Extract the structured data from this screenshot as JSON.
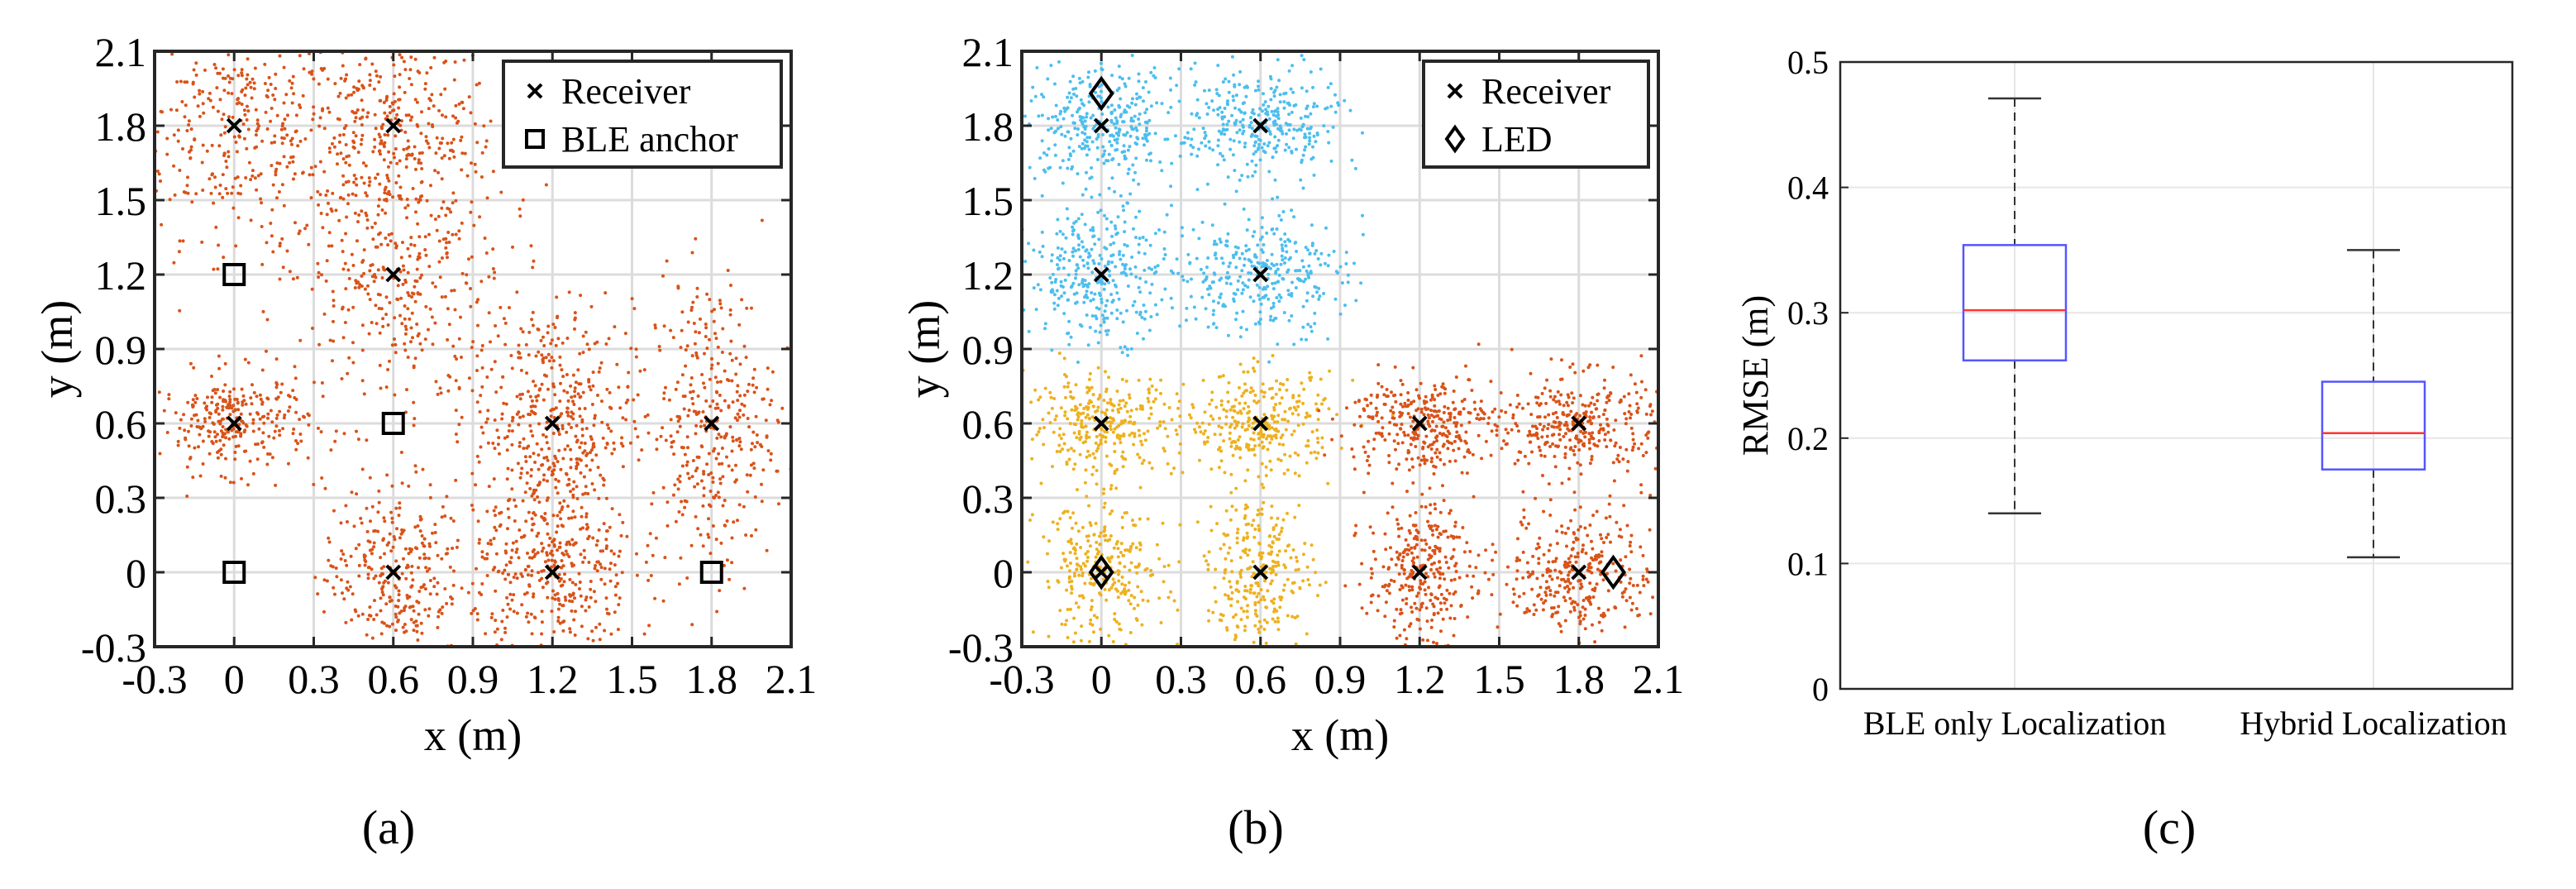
{
  "chart_data": [
    {
      "type": "scatter",
      "panel_label": "(a)",
      "xlabel": "x (m)",
      "ylabel": "y (m)",
      "xlim": [
        -0.3,
        2.1
      ],
      "ylim": [
        -0.3,
        2.1
      ],
      "ticks": [
        -0.3,
        0,
        0.3,
        0.6,
        0.9,
        1.2,
        1.5,
        1.8,
        2.1
      ],
      "tick_labels": [
        "-0.3",
        "0",
        "0.3",
        "0.6",
        "0.9",
        "1.2",
        "1.5",
        "1.8",
        "2.1"
      ],
      "grid": true,
      "legend_position": "top-right",
      "legend": [
        {
          "label": "Receiver",
          "marker": "x"
        },
        {
          "label": "BLE anchor",
          "marker": "square"
        }
      ],
      "receivers": [
        [
          0,
          1.8
        ],
        [
          0.6,
          1.8
        ],
        [
          0.6,
          1.2
        ],
        [
          0,
          0.6
        ],
        [
          1.2,
          0.6
        ],
        [
          1.8,
          0.6
        ],
        [
          0.6,
          0
        ],
        [
          1.2,
          0
        ]
      ],
      "anchors": [
        [
          0,
          1.2
        ],
        [
          0.6,
          0.6
        ],
        [
          0,
          0
        ],
        [
          1.8,
          0
        ]
      ],
      "estimate_clouds": [
        {
          "center": [
            0,
            1.8
          ],
          "spread": [
            0.2,
            0.22
          ],
          "count": 340,
          "color": "#d95319"
        },
        {
          "center": [
            0.6,
            1.8
          ],
          "spread": [
            0.2,
            0.2
          ],
          "count": 320,
          "color": "#d95319"
        },
        {
          "center": [
            0.6,
            1.2
          ],
          "spread": [
            0.22,
            0.3
          ],
          "count": 420,
          "color": "#d95319"
        },
        {
          "center": [
            0,
            0.6
          ],
          "spread": [
            0.14,
            0.1
          ],
          "count": 280,
          "color": "#d95319"
        },
        {
          "center": [
            1.2,
            0.6
          ],
          "spread": [
            0.15,
            0.25
          ],
          "count": 460,
          "color": "#d95319"
        },
        {
          "center": [
            1.8,
            0.6
          ],
          "spread": [
            0.12,
            0.3
          ],
          "count": 360,
          "color": "#d95319"
        },
        {
          "center": [
            0.6,
            0
          ],
          "spread": [
            0.13,
            0.18
          ],
          "count": 300,
          "color": "#d95319"
        },
        {
          "center": [
            1.2,
            0
          ],
          "spread": [
            0.15,
            0.18
          ],
          "count": 360,
          "color": "#d95319"
        }
      ]
    },
    {
      "type": "scatter",
      "panel_label": "(b)",
      "xlabel": "x (m)",
      "ylabel": "y (m)",
      "xlim": [
        -0.3,
        2.1
      ],
      "ylim": [
        -0.3,
        2.1
      ],
      "ticks": [
        -0.3,
        0,
        0.3,
        0.6,
        0.9,
        1.2,
        1.5,
        1.8,
        2.1
      ],
      "tick_labels": [
        "-0.3",
        "0",
        "0.3",
        "0.6",
        "0.9",
        "1.2",
        "1.5",
        "1.8",
        "2.1"
      ],
      "grid": true,
      "legend_position": "top-right",
      "legend": [
        {
          "label": "Receiver",
          "marker": "x"
        },
        {
          "label": "LED",
          "marker": "diamond"
        }
      ],
      "receivers": [
        [
          0,
          1.8
        ],
        [
          0.6,
          1.8
        ],
        [
          0,
          1.2
        ],
        [
          0.6,
          1.2
        ],
        [
          0,
          0.6
        ],
        [
          0.6,
          0.6
        ],
        [
          1.2,
          0.6
        ],
        [
          1.8,
          0.6
        ],
        [
          0,
          0
        ],
        [
          0.6,
          0
        ],
        [
          1.2,
          0
        ],
        [
          1.8,
          0
        ]
      ],
      "leds": [
        [
          0,
          1.93
        ],
        [
          0,
          0
        ],
        [
          1.93,
          0
        ]
      ],
      "estimate_clouds": [
        {
          "center": [
            0,
            1.8
          ],
          "spread": [
            0.15,
            0.12
          ],
          "count": 340,
          "color": "#4dbeee"
        },
        {
          "center": [
            0.6,
            1.8
          ],
          "spread": [
            0.15,
            0.12
          ],
          "count": 320,
          "color": "#4dbeee"
        },
        {
          "center": [
            0,
            1.2
          ],
          "spread": [
            0.14,
            0.13
          ],
          "count": 320,
          "color": "#4dbeee"
        },
        {
          "center": [
            0.6,
            1.2
          ],
          "spread": [
            0.16,
            0.12
          ],
          "count": 320,
          "color": "#4dbeee"
        },
        {
          "center": [
            0,
            0.6
          ],
          "spread": [
            0.14,
            0.1
          ],
          "count": 300,
          "color": "#edb120"
        },
        {
          "center": [
            0.6,
            0.6
          ],
          "spread": [
            0.14,
            0.1
          ],
          "count": 300,
          "color": "#edb120"
        },
        {
          "center": [
            0,
            0
          ],
          "spread": [
            0.12,
            0.14
          ],
          "count": 280,
          "color": "#edb120"
        },
        {
          "center": [
            0.6,
            0
          ],
          "spread": [
            0.1,
            0.16
          ],
          "count": 280,
          "color": "#edb120"
        },
        {
          "center": [
            1.2,
            0.6
          ],
          "spread": [
            0.14,
            0.1
          ],
          "count": 320,
          "color": "#d95319"
        },
        {
          "center": [
            1.8,
            0.6
          ],
          "spread": [
            0.16,
            0.1
          ],
          "count": 340,
          "color": "#d95319"
        },
        {
          "center": [
            1.2,
            0
          ],
          "spread": [
            0.1,
            0.14
          ],
          "count": 300,
          "color": "#d95319"
        },
        {
          "center": [
            1.8,
            0
          ],
          "spread": [
            0.14,
            0.13
          ],
          "count": 320,
          "color": "#d95319"
        }
      ]
    },
    {
      "type": "box",
      "panel_label": "(c)",
      "ylabel": "RMSE (m)",
      "ylim": [
        0,
        0.5
      ],
      "yticks": [
        0,
        0.1,
        0.2,
        0.3,
        0.4,
        0.5
      ],
      "ytick_labels": [
        "0",
        "0.1",
        "0.2",
        "0.3",
        "0.4",
        "0.5"
      ],
      "categories": [
        "BLE only Localization",
        "Hybrid Localization"
      ],
      "grid": true,
      "boxes": [
        {
          "name": "BLE only Localization",
          "min": 0.14,
          "q1": 0.262,
          "median": 0.302,
          "q3": 0.354,
          "max": 0.471
        },
        {
          "name": "Hybrid Localization",
          "min": 0.105,
          "q1": 0.175,
          "median": 0.204,
          "q3": 0.245,
          "max": 0.35
        }
      ],
      "colors": {
        "box": "#5555ff",
        "median": "#ff3333",
        "whisker": "#333333"
      }
    }
  ]
}
